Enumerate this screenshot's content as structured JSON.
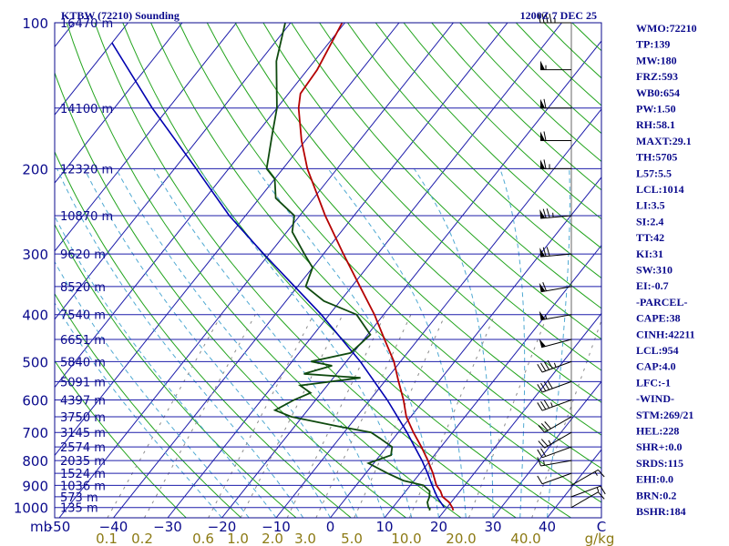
{
  "header": {
    "station": "KTBW (72210) Sounding",
    "time": "1200Z  7 DEC 25"
  },
  "colors": {
    "axis": "#0a0a8c",
    "isobar": "#1c1caa",
    "dry_adiabat": "#23a41e",
    "moist_adiabat": "#4fa9d2",
    "mixing_ratio": "#8c8c8c",
    "temperature": "#b50000",
    "dewpoint": "#0f4a0f",
    "parcel": "#0000b0",
    "wind_barb": "#000000"
  },
  "chart_data": {
    "type": "line",
    "diagram": "skew-t log-p",
    "xlabel_units": "C",
    "ylabel_units": "mb",
    "mixing_ratio_units": "g/kg",
    "pressure_ticks": [
      100,
      200,
      300,
      400,
      500,
      600,
      700,
      800,
      900,
      1000
    ],
    "pressure_tick_labels": [
      "100",
      "200",
      "300",
      "400",
      "500",
      "600",
      "700",
      "800",
      "900",
      "1000"
    ],
    "temperature_ticks": [
      -50,
      -40,
      -30,
      -20,
      -10,
      0,
      10,
      20,
      30,
      40
    ],
    "temperature_tick_labels": [
      "-50",
      "−40",
      "−30",
      "−20",
      "−10",
      "0",
      "10",
      "20",
      "30",
      "40"
    ],
    "mixing_ratio_ticks": [
      0.1,
      0.2,
      0.6,
      1.0,
      2.0,
      3.0,
      5.0,
      10.0,
      20.0,
      40.0
    ],
    "mixing_ratio_tick_labels": [
      "0.1",
      "0.2",
      "0.6",
      "1.0",
      "2.0",
      "3.0",
      "5.0",
      "10.0",
      "20.0",
      "40.0"
    ],
    "height_levels": [
      {
        "p": 100,
        "label": "16470 m"
      },
      {
        "p": 150,
        "label": "14100 m"
      },
      {
        "p": 200,
        "label": "12320 m"
      },
      {
        "p": 250,
        "label": "10870 m"
      },
      {
        "p": 300,
        "label": "9620 m"
      },
      {
        "p": 350,
        "label": "8520 m"
      },
      {
        "p": 400,
        "label": "7540 m"
      },
      {
        "p": 450,
        "label": "6651 m"
      },
      {
        "p": 500,
        "label": "5840 m"
      },
      {
        "p": 550,
        "label": "5091 m"
      },
      {
        "p": 600,
        "label": "4397 m"
      },
      {
        "p": 650,
        "label": "3750 m"
      },
      {
        "p": 700,
        "label": "3145 m"
      },
      {
        "p": 750,
        "label": "2574 m"
      },
      {
        "p": 800,
        "label": "2035 m"
      },
      {
        "p": 850,
        "label": "1524 m"
      },
      {
        "p": 900,
        "label": "1036 m"
      },
      {
        "p": 950,
        "label": "573 m"
      },
      {
        "p": 1000,
        "label": "135 m"
      }
    ],
    "temperature_profile": [
      {
        "p": 1014,
        "t": 21.6
      },
      {
        "p": 1000,
        "t": 21.0
      },
      {
        "p": 975,
        "t": 19.6
      },
      {
        "p": 950,
        "t": 17.6
      },
      {
        "p": 925,
        "t": 16.4
      },
      {
        "p": 900,
        "t": 14.8
      },
      {
        "p": 850,
        "t": 12.4
      },
      {
        "p": 800,
        "t": 9.6
      },
      {
        "p": 750,
        "t": 6.4
      },
      {
        "p": 700,
        "t": 2.8
      },
      {
        "p": 650,
        "t": -0.8
      },
      {
        "p": 600,
        "t": -3.8
      },
      {
        "p": 550,
        "t": -7.4
      },
      {
        "p": 500,
        "t": -11.2
      },
      {
        "p": 450,
        "t": -16.2
      },
      {
        "p": 400,
        "t": -21.7
      },
      {
        "p": 350,
        "t": -28.5
      },
      {
        "p": 300,
        "t": -36.3
      },
      {
        "p": 250,
        "t": -45.3
      },
      {
        "p": 200,
        "t": -55.5
      },
      {
        "p": 175,
        "t": -60.7
      },
      {
        "p": 150,
        "t": -66.0
      },
      {
        "p": 140,
        "t": -67.8
      },
      {
        "p": 125,
        "t": -68.2
      },
      {
        "p": 100,
        "t": -70.5
      }
    ],
    "dewpoint_profile": [
      {
        "p": 1014,
        "t": 17.2
      },
      {
        "p": 1005,
        "t": 17.0
      },
      {
        "p": 1000,
        "t": 16.6
      },
      {
        "p": 975,
        "t": 15.6
      },
      {
        "p": 950,
        "t": 15.2
      },
      {
        "p": 925,
        "t": 14.4
      },
      {
        "p": 900,
        "t": 12.4
      },
      {
        "p": 880,
        "t": 8.0
      },
      {
        "p": 850,
        "t": 4.0
      },
      {
        "p": 810,
        "t": -1.0
      },
      {
        "p": 780,
        "t": 2.0
      },
      {
        "p": 750,
        "t": 1.0
      },
      {
        "p": 720,
        "t": -2.5
      },
      {
        "p": 700,
        "t": -5.0
      },
      {
        "p": 680,
        "t": -12.0
      },
      {
        "p": 650,
        "t": -22.0
      },
      {
        "p": 630,
        "t": -26.0
      },
      {
        "p": 600,
        "t": -24.0
      },
      {
        "p": 580,
        "t": -22.0
      },
      {
        "p": 560,
        "t": -25.0
      },
      {
        "p": 540,
        "t": -15.0
      },
      {
        "p": 530,
        "t": -26.0
      },
      {
        "p": 510,
        "t": -22.0
      },
      {
        "p": 500,
        "t": -26.5
      },
      {
        "p": 480,
        "t": -20.5
      },
      {
        "p": 460,
        "t": -20.0
      },
      {
        "p": 440,
        "t": -19.5
      },
      {
        "p": 400,
        "t": -25.0
      },
      {
        "p": 375,
        "t": -33.0
      },
      {
        "p": 350,
        "t": -38.5
      },
      {
        "p": 320,
        "t": -40.0
      },
      {
        "p": 300,
        "t": -43.5
      },
      {
        "p": 270,
        "t": -49.0
      },
      {
        "p": 250,
        "t": -51.0
      },
      {
        "p": 230,
        "t": -57.0
      },
      {
        "p": 210,
        "t": -60.0
      },
      {
        "p": 200,
        "t": -63.0
      },
      {
        "p": 170,
        "t": -67.0
      },
      {
        "p": 150,
        "t": -70.0
      },
      {
        "p": 120,
        "t": -77.0
      },
      {
        "p": 100,
        "t": -81.0
      }
    ],
    "parcel_profile": [
      {
        "p": 1000,
        "t": 19.5
      },
      {
        "p": 954,
        "t": 16.8
      },
      {
        "p": 900,
        "t": 14.0
      },
      {
        "p": 850,
        "t": 11.4
      },
      {
        "p": 800,
        "t": 8.5
      },
      {
        "p": 700,
        "t": 1.6
      },
      {
        "p": 600,
        "t": -6.8
      },
      {
        "p": 500,
        "t": -17.4
      },
      {
        "p": 400,
        "t": -31.5
      },
      {
        "p": 300,
        "t": -51.0
      },
      {
        "p": 250,
        "t": -63.0
      },
      {
        "p": 200,
        "t": -76.0
      },
      {
        "p": 150,
        "t": -93.0
      },
      {
        "p": 110,
        "t": -110.0
      }
    ],
    "wind_barbs": [
      {
        "p": 1000,
        "dir": 60,
        "spd": 10
      },
      {
        "p": 950,
        "dir": 70,
        "spd": 15
      },
      {
        "p": 900,
        "dir": 60,
        "spd": 15
      },
      {
        "p": 850,
        "dir": 250,
        "spd": 10
      },
      {
        "p": 800,
        "dir": 260,
        "spd": 15
      },
      {
        "p": 750,
        "dir": 250,
        "spd": 20
      },
      {
        "p": 700,
        "dir": 240,
        "spd": 25
      },
      {
        "p": 650,
        "dir": 240,
        "spd": 30
      },
      {
        "p": 600,
        "dir": 250,
        "spd": 35
      },
      {
        "p": 550,
        "dir": 250,
        "spd": 40
      },
      {
        "p": 500,
        "dir": 250,
        "spd": 45
      },
      {
        "p": 450,
        "dir": 255,
        "spd": 50
      },
      {
        "p": 400,
        "dir": 260,
        "spd": 55
      },
      {
        "p": 350,
        "dir": 260,
        "spd": 60
      },
      {
        "p": 300,
        "dir": 265,
        "spd": 70
      },
      {
        "p": 250,
        "dir": 265,
        "spd": 75
      },
      {
        "p": 200,
        "dir": 270,
        "spd": 65
      },
      {
        "p": 175,
        "dir": 270,
        "spd": 60
      },
      {
        "p": 150,
        "dir": 270,
        "spd": 60
      },
      {
        "p": 125,
        "dir": 270,
        "spd": 55
      },
      {
        "p": 100,
        "dir": 270,
        "spd": 45
      }
    ]
  },
  "indices": [
    "WMO:72210",
    "TP:139",
    "MW:180",
    "FRZ:593",
    "WB0:654",
    "PW:1.50",
    "RH:58.1",
    "MAXT:29.1",
    "TH:5705",
    "L57:5.5",
    "LCL:1014",
    "LI:3.5",
    "SI:2.4",
    "TT:42",
    "KI:31",
    "SW:310",
    "EI:-0.7",
    "-PARCEL-",
    "CAPE:38",
    "CINH:42211",
    "LCL:954",
    "CAP:4.0",
    "LFC:-1",
    "-WIND-",
    "STM:269/21",
    "HEL:228",
    "SHR+:0.0",
    "SRDS:115",
    "EHI:0.0",
    "BRN:0.2",
    "BSHR:184"
  ]
}
